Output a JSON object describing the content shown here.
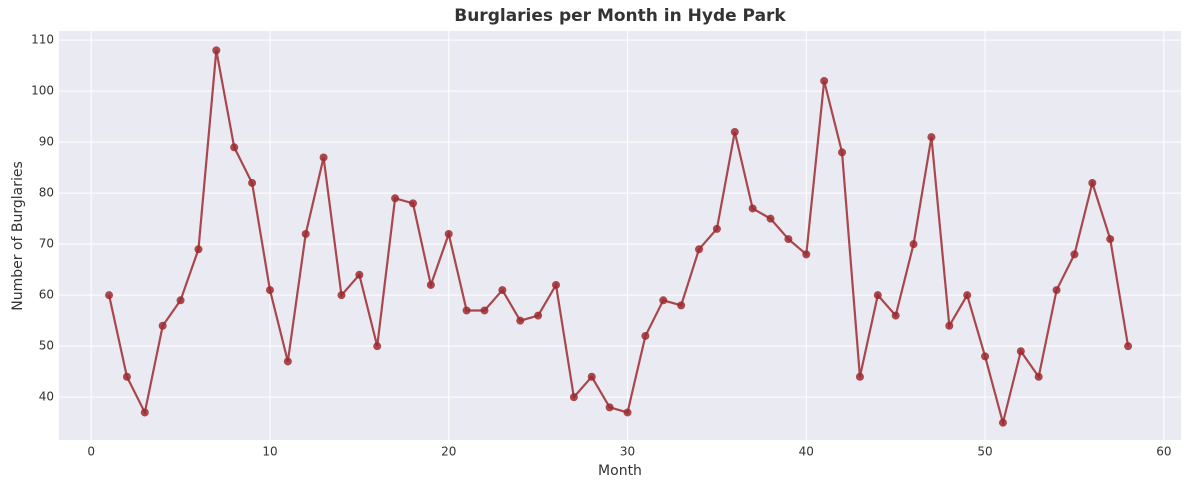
{
  "chart_data": {
    "type": "line",
    "title": "Burglaries per Month in Hyde Park",
    "xlabel": "Month",
    "ylabel": "Number of Burglaries",
    "x": [
      1,
      2,
      3,
      4,
      5,
      6,
      7,
      8,
      9,
      10,
      11,
      12,
      13,
      14,
      15,
      16,
      17,
      18,
      19,
      20,
      21,
      22,
      23,
      24,
      25,
      26,
      27,
      28,
      29,
      30,
      31,
      32,
      33,
      34,
      35,
      36,
      37,
      38,
      39,
      40,
      41,
      42,
      43,
      44,
      45,
      46,
      47,
      48,
      49,
      50,
      51,
      52,
      53,
      54,
      55,
      56,
      57,
      58
    ],
    "values": [
      60,
      44,
      37,
      54,
      59,
      69,
      108,
      89,
      82,
      61,
      47,
      72,
      87,
      60,
      64,
      50,
      79,
      78,
      62,
      72,
      57,
      57,
      61,
      55,
      56,
      62,
      40,
      44,
      38,
      37,
      52,
      59,
      58,
      69,
      73,
      92,
      77,
      75,
      71,
      68,
      102,
      88,
      44,
      60,
      56,
      70,
      91,
      54,
      60,
      48,
      35,
      49,
      44,
      61,
      68,
      82,
      71,
      50
    ],
    "color": "#9e2a2f",
    "xlim": [
      -1.8,
      60.96
    ],
    "xticks": [
      0,
      10,
      20,
      30,
      40,
      50,
      60
    ],
    "ylim": [
      31.6,
      111.8
    ],
    "yticks": [
      40,
      50,
      60,
      70,
      80,
      90,
      100,
      110
    ],
    "grid": true
  }
}
